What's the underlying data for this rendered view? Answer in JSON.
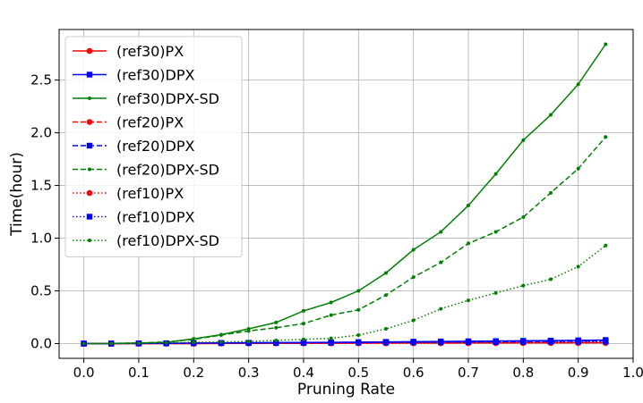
{
  "chart_data": {
    "type": "line",
    "xlabel": "Pruning Rate",
    "ylabel": "Time(hour)",
    "xlim": [
      -0.045,
      1.0
    ],
    "ylim": [
      -0.14,
      2.98
    ],
    "xticks": [
      0.0,
      0.1,
      0.2,
      0.3,
      0.4,
      0.5,
      0.6,
      0.7,
      0.8,
      0.9,
      1.0
    ],
    "xtick_labels": [
      "0.0",
      "0.1",
      "0.2",
      "0.3",
      "0.4",
      "0.5",
      "0.6",
      "0.7",
      "0.8",
      "0.9",
      "1.0"
    ],
    "yticks": [
      0.0,
      0.5,
      1.0,
      1.5,
      2.0,
      2.5
    ],
    "ytick_labels": [
      "0.0",
      "0.5",
      "1.0",
      "1.5",
      "2.0",
      "2.5"
    ],
    "grid": true,
    "legend_position": "top-left",
    "x": [
      0.0,
      0.05,
      0.1,
      0.15,
      0.2,
      0.25,
      0.3,
      0.35,
      0.4,
      0.45,
      0.5,
      0.55,
      0.6,
      0.65,
      0.7,
      0.75,
      0.8,
      0.85,
      0.9,
      0.95
    ],
    "series": [
      {
        "name": "(ref30)PX",
        "color": "#ff0000",
        "dash": "solid",
        "marker": "circle",
        "values": [
          0,
          0,
          0,
          0,
          0,
          0.002,
          0.003,
          0.003,
          0.004,
          0.004,
          0.005,
          0.005,
          0.006,
          0.006,
          0.007,
          0.007,
          0.008,
          0.008,
          0.009,
          0.009
        ]
      },
      {
        "name": "(ref30)DPX",
        "color": "#0000ff",
        "dash": "solid",
        "marker": "square",
        "values": [
          0,
          0,
          0.002,
          0.003,
          0.005,
          0.006,
          0.008,
          0.009,
          0.011,
          0.012,
          0.014,
          0.016,
          0.018,
          0.02,
          0.022,
          0.024,
          0.026,
          0.028,
          0.031,
          0.034
        ]
      },
      {
        "name": "(ref30)DPX-SD",
        "color": "#008000",
        "dash": "solid",
        "marker": "dot",
        "values": [
          0,
          0.002,
          0.005,
          0.012,
          0.045,
          0.085,
          0.14,
          0.2,
          0.31,
          0.39,
          0.5,
          0.67,
          0.89,
          1.06,
          1.31,
          1.61,
          1.93,
          2.17,
          2.46,
          2.84
        ]
      },
      {
        "name": "(ref20)PX",
        "color": "#ff0000",
        "dash": "dashed",
        "marker": "circle",
        "values": [
          0,
          0,
          0,
          0,
          0,
          0.002,
          0.002,
          0.003,
          0.003,
          0.004,
          0.004,
          0.005,
          0.005,
          0.005,
          0.006,
          0.006,
          0.007,
          0.007,
          0.007,
          0.008
        ]
      },
      {
        "name": "(ref20)DPX",
        "color": "#0000ff",
        "dash": "dashed",
        "marker": "square",
        "values": [
          0,
          0,
          0.001,
          0.002,
          0.004,
          0.005,
          0.006,
          0.007,
          0.009,
          0.01,
          0.011,
          0.013,
          0.014,
          0.016,
          0.017,
          0.019,
          0.021,
          0.023,
          0.025,
          0.027
        ]
      },
      {
        "name": "(ref20)DPX-SD",
        "color": "#008000",
        "dash": "dashed",
        "marker": "dot",
        "values": [
          0,
          0.002,
          0.005,
          0.015,
          0.04,
          0.08,
          0.12,
          0.15,
          0.19,
          0.27,
          0.32,
          0.46,
          0.63,
          0.77,
          0.95,
          1.06,
          1.2,
          1.43,
          1.66,
          1.96
        ]
      },
      {
        "name": "(ref10)PX",
        "color": "#ff0000",
        "dash": "dotted",
        "marker": "circle",
        "values": [
          0,
          0,
          0,
          0,
          0,
          0.001,
          0.001,
          0.002,
          0.002,
          0.002,
          0.003,
          0.003,
          0.003,
          0.004,
          0.004,
          0.004,
          0.005,
          0.005,
          0.005,
          0.005
        ]
      },
      {
        "name": "(ref10)DPX",
        "color": "#0000ff",
        "dash": "dotted",
        "marker": "square",
        "values": [
          0,
          0,
          0.001,
          0.002,
          0.003,
          0.004,
          0.005,
          0.006,
          0.007,
          0.008,
          0.009,
          0.01,
          0.011,
          0.012,
          0.013,
          0.014,
          0.015,
          0.016,
          0.017,
          0.019
        ]
      },
      {
        "name": "(ref10)DPX-SD",
        "color": "#008000",
        "dash": "dotted",
        "marker": "dot",
        "values": [
          0,
          0.001,
          0.003,
          0.008,
          0.012,
          0.015,
          0.02,
          0.03,
          0.04,
          0.05,
          0.08,
          0.14,
          0.22,
          0.33,
          0.41,
          0.48,
          0.55,
          0.61,
          0.73,
          0.93
        ]
      }
    ]
  }
}
